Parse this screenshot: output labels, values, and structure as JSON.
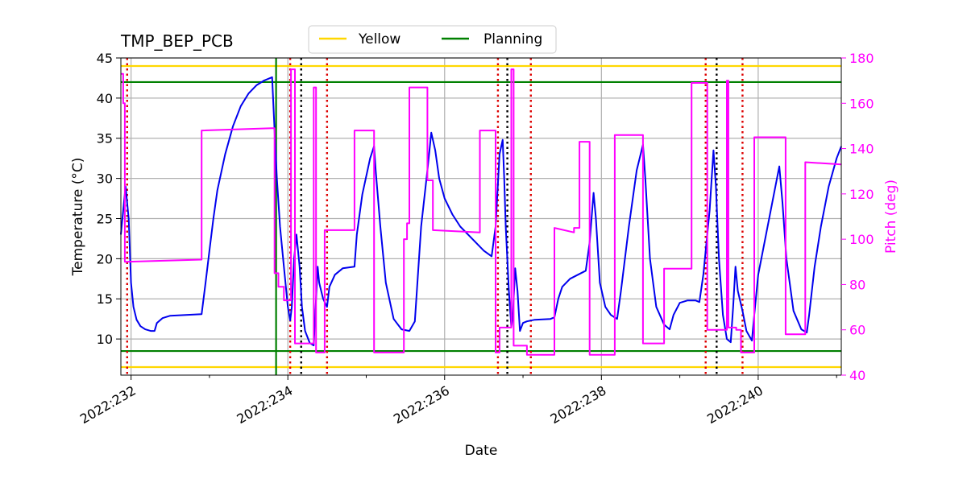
{
  "chart_data": {
    "type": "line",
    "title": "TMP_BEP_PCB",
    "xlabel": "Date",
    "ylabel": "Temperature ($^\\circ$C)",
    "ylabel_display": "Temperature (°C)",
    "y2label": "Pitch (deg)",
    "xlim": [
      231.87,
      241.06
    ],
    "ylim": [
      5.5,
      45
    ],
    "y2lim": [
      40,
      180
    ],
    "grid": true,
    "legend_position": "top-center",
    "x_ticks": [
      {
        "value": 232,
        "label": "2022:232"
      },
      {
        "value": 234,
        "label": "2022:234"
      },
      {
        "value": 236,
        "label": "2022:236"
      },
      {
        "value": 238,
        "label": "2022:238"
      },
      {
        "value": 240,
        "label": "2022:240"
      }
    ],
    "x_minor_ticks": [
      233,
      235,
      237,
      239,
      241
    ],
    "y_ticks": [
      10,
      15,
      20,
      25,
      30,
      35,
      40,
      45
    ],
    "y2_ticks": [
      40,
      60,
      80,
      100,
      120,
      140,
      160,
      180
    ],
    "colors": {
      "temperature": "#0000ee",
      "pitch": "#ff00ff",
      "yellow": "#ffd700",
      "planning": "#008000",
      "red_marker": "#dd0000",
      "black_marker": "#000000",
      "grid": "#b0b0b0"
    },
    "legend": [
      {
        "label": "Yellow",
        "color": "#ffd700"
      },
      {
        "label": "Planning",
        "color": "#008000"
      }
    ],
    "limit_lines": [
      {
        "name": "Yellow",
        "values": [
          44,
          6.5
        ]
      },
      {
        "name": "Planning",
        "values": [
          42,
          8.5
        ]
      }
    ],
    "planning_vertical_x": 233.85,
    "red_markers": [
      231.95,
      234.03,
      234.5,
      236.68,
      237.1,
      239.33,
      239.8
    ],
    "black_markers": [
      234.17,
      236.8,
      239.47
    ],
    "series": [
      {
        "axis": "left",
        "points": [
          [
            231.87,
            23
          ],
          [
            231.93,
            29
          ],
          [
            231.97,
            25
          ],
          [
            232.0,
            17
          ],
          [
            232.03,
            14
          ],
          [
            232.07,
            12.4
          ],
          [
            232.12,
            11.6
          ],
          [
            232.18,
            11.2
          ],
          [
            232.25,
            11.0
          ],
          [
            232.3,
            11.0
          ],
          [
            232.33,
            12.0
          ],
          [
            232.4,
            12.6
          ],
          [
            232.5,
            12.9
          ],
          [
            232.7,
            13.0
          ],
          [
            232.9,
            13.1
          ],
          [
            232.95,
            17
          ],
          [
            233.0,
            21
          ],
          [
            233.05,
            25
          ],
          [
            233.1,
            28.5
          ],
          [
            233.2,
            33
          ],
          [
            233.3,
            36.5
          ],
          [
            233.4,
            39
          ],
          [
            233.5,
            40.6
          ],
          [
            233.6,
            41.6
          ],
          [
            233.7,
            42.2
          ],
          [
            233.8,
            42.6
          ],
          [
            233.83,
            36
          ],
          [
            233.86,
            30
          ],
          [
            233.9,
            24
          ],
          [
            233.95,
            19
          ],
          [
            234.0,
            14
          ],
          [
            234.03,
            12.3
          ],
          [
            234.05,
            14
          ],
          [
            234.08,
            20
          ],
          [
            234.11,
            23
          ],
          [
            234.15,
            19
          ],
          [
            234.18,
            14
          ],
          [
            234.22,
            11
          ],
          [
            234.28,
            9.5
          ],
          [
            234.33,
            9.2
          ],
          [
            234.36,
            15
          ],
          [
            234.38,
            19
          ],
          [
            234.4,
            17
          ],
          [
            234.45,
            15
          ],
          [
            234.5,
            14
          ],
          [
            234.53,
            16.5
          ],
          [
            234.6,
            18
          ],
          [
            234.7,
            18.8
          ],
          [
            234.85,
            19
          ],
          [
            234.88,
            23
          ],
          [
            234.95,
            28
          ],
          [
            235.05,
            32.5
          ],
          [
            235.1,
            34
          ],
          [
            235.12,
            31
          ],
          [
            235.18,
            24
          ],
          [
            235.25,
            17
          ],
          [
            235.35,
            12.5
          ],
          [
            235.45,
            11.2
          ],
          [
            235.55,
            11
          ],
          [
            235.62,
            12.2
          ],
          [
            235.7,
            24
          ],
          [
            235.78,
            31
          ],
          [
            235.83,
            35.7
          ],
          [
            235.88,
            33.5
          ],
          [
            235.93,
            30
          ],
          [
            236.0,
            27.5
          ],
          [
            236.1,
            25.5
          ],
          [
            236.2,
            24
          ],
          [
            236.35,
            22.5
          ],
          [
            236.5,
            21
          ],
          [
            236.6,
            20.3
          ],
          [
            236.65,
            24
          ],
          [
            236.7,
            33
          ],
          [
            236.74,
            34.8
          ],
          [
            236.76,
            30
          ],
          [
            236.78,
            24
          ],
          [
            236.82,
            16
          ],
          [
            236.85,
            11.5
          ],
          [
            236.87,
            13
          ],
          [
            236.9,
            18.8
          ],
          [
            236.93,
            16
          ],
          [
            236.96,
            11
          ],
          [
            237.0,
            12
          ],
          [
            237.05,
            12.2
          ],
          [
            237.15,
            12.4
          ],
          [
            237.35,
            12.5
          ],
          [
            237.4,
            12.7
          ],
          [
            237.45,
            15
          ],
          [
            237.5,
            16.5
          ],
          [
            237.6,
            17.5
          ],
          [
            237.7,
            18
          ],
          [
            237.8,
            18.5
          ],
          [
            237.85,
            22
          ],
          [
            237.9,
            28.2
          ],
          [
            237.93,
            25
          ],
          [
            237.98,
            17
          ],
          [
            238.05,
            14
          ],
          [
            238.12,
            13
          ],
          [
            238.2,
            12.5
          ],
          [
            238.25,
            16
          ],
          [
            238.35,
            24
          ],
          [
            238.45,
            31
          ],
          [
            238.53,
            34.2
          ],
          [
            238.56,
            30
          ],
          [
            238.62,
            20
          ],
          [
            238.7,
            14
          ],
          [
            238.8,
            11.8
          ],
          [
            238.87,
            11.2
          ],
          [
            238.92,
            13
          ],
          [
            239.0,
            14.5
          ],
          [
            239.1,
            14.8
          ],
          [
            239.2,
            14.8
          ],
          [
            239.25,
            14.6
          ],
          [
            239.3,
            18
          ],
          [
            239.38,
            26
          ],
          [
            239.43,
            33.5
          ],
          [
            239.46,
            29
          ],
          [
            239.5,
            20
          ],
          [
            239.55,
            13
          ],
          [
            239.6,
            10
          ],
          [
            239.65,
            9.6
          ],
          [
            239.68,
            14
          ],
          [
            239.71,
            19
          ],
          [
            239.74,
            16
          ],
          [
            239.8,
            13.5
          ],
          [
            239.85,
            11
          ],
          [
            239.92,
            9.8
          ],
          [
            239.95,
            13
          ],
          [
            240.0,
            18
          ],
          [
            240.1,
            23
          ],
          [
            240.2,
            28
          ],
          [
            240.27,
            31.5
          ],
          [
            240.31,
            27
          ],
          [
            240.36,
            20
          ],
          [
            240.45,
            13.5
          ],
          [
            240.55,
            11.2
          ],
          [
            240.62,
            10.8
          ],
          [
            240.65,
            13
          ],
          [
            240.72,
            19
          ],
          [
            240.8,
            24
          ],
          [
            240.9,
            29
          ],
          [
            241.0,
            32.5
          ],
          [
            241.06,
            34
          ]
        ]
      },
      {
        "axis": "right",
        "points": [
          [
            231.87,
            173
          ],
          [
            231.9,
            173
          ],
          [
            231.9,
            160
          ],
          [
            231.92,
            160
          ],
          [
            231.92,
            90
          ],
          [
            232.9,
            91
          ],
          [
            232.9,
            148
          ],
          [
            233.8,
            149
          ],
          [
            233.83,
            149
          ],
          [
            233.83,
            85
          ],
          [
            233.88,
            85
          ],
          [
            233.88,
            79
          ],
          [
            233.95,
            79
          ],
          [
            233.95,
            73
          ],
          [
            234.04,
            73
          ],
          [
            234.04,
            175
          ],
          [
            234.09,
            175
          ],
          [
            234.09,
            54
          ],
          [
            234.3,
            54
          ],
          [
            234.33,
            54
          ],
          [
            234.33,
            167
          ],
          [
            234.36,
            167
          ],
          [
            234.36,
            50
          ],
          [
            234.47,
            50
          ],
          [
            234.47,
            104
          ],
          [
            234.85,
            104
          ],
          [
            234.85,
            148
          ],
          [
            235.1,
            148
          ],
          [
            235.1,
            50
          ],
          [
            235.48,
            50
          ],
          [
            235.48,
            100
          ],
          [
            235.52,
            100
          ],
          [
            235.52,
            107
          ],
          [
            235.55,
            107
          ],
          [
            235.55,
            167
          ],
          [
            235.78,
            167
          ],
          [
            235.78,
            126
          ],
          [
            235.85,
            126
          ],
          [
            235.85,
            104
          ],
          [
            236.45,
            103
          ],
          [
            236.45,
            148
          ],
          [
            236.65,
            148
          ],
          [
            236.65,
            50
          ],
          [
            236.7,
            50
          ],
          [
            236.7,
            61
          ],
          [
            236.85,
            61
          ],
          [
            236.85,
            175
          ],
          [
            236.88,
            175
          ],
          [
            236.88,
            53
          ],
          [
            237.05,
            53
          ],
          [
            237.05,
            49
          ],
          [
            237.4,
            49
          ],
          [
            237.4,
            105
          ],
          [
            237.65,
            103
          ],
          [
            237.65,
            105
          ],
          [
            237.72,
            105
          ],
          [
            237.72,
            143
          ],
          [
            237.85,
            143
          ],
          [
            237.85,
            49
          ],
          [
            238.17,
            49
          ],
          [
            238.17,
            146
          ],
          [
            238.53,
            146
          ],
          [
            238.53,
            54
          ],
          [
            238.8,
            54
          ],
          [
            238.8,
            87
          ],
          [
            239.15,
            87
          ],
          [
            239.15,
            169
          ],
          [
            239.35,
            169
          ],
          [
            239.35,
            60
          ],
          [
            239.6,
            60
          ],
          [
            239.6,
            170
          ],
          [
            239.62,
            170
          ],
          [
            239.62,
            61
          ],
          [
            239.72,
            61
          ],
          [
            239.72,
            60
          ],
          [
            239.78,
            60
          ],
          [
            239.78,
            50
          ],
          [
            239.95,
            50
          ],
          [
            239.95,
            145
          ],
          [
            240.35,
            145
          ],
          [
            240.35,
            58
          ],
          [
            240.6,
            58
          ],
          [
            240.6,
            134
          ],
          [
            241.06,
            133
          ]
        ]
      }
    ]
  }
}
